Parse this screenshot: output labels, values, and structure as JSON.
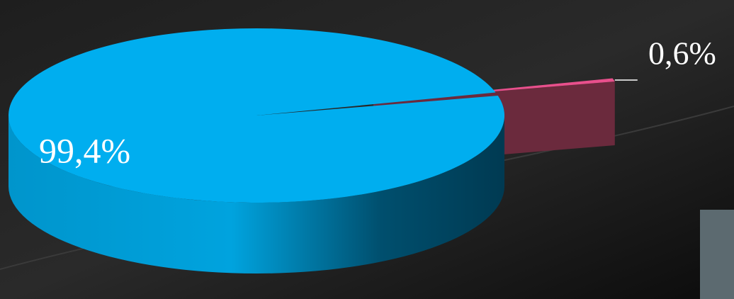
{
  "chart_data": {
    "type": "pie",
    "values": [
      99.4,
      0.6
    ],
    "value_labels": [
      "99,4%",
      "0,6%"
    ],
    "colors": [
      "#00aeef",
      "#e8508c"
    ]
  }
}
